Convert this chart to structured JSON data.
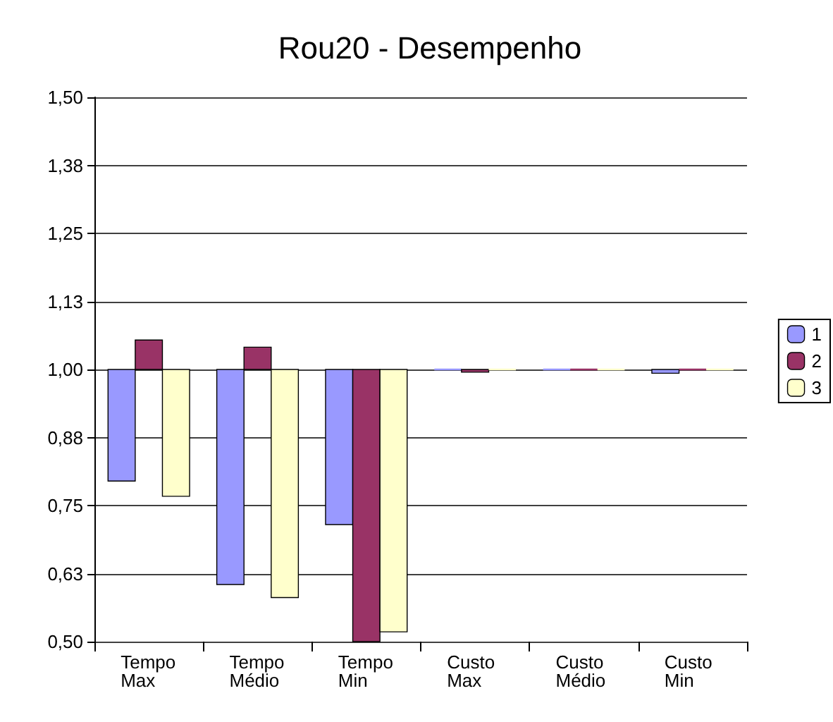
{
  "chart_data": {
    "type": "bar",
    "title": "Rou20 - Desempenho",
    "categories": [
      "Tempo\nMax",
      "Tempo\nMédio",
      "Tempo\nMin",
      "Custo\nMax",
      "Custo\nMédio",
      "Custo\nMin"
    ],
    "series": [
      {
        "name": "1",
        "color": "#9999ff",
        "values": [
          -0.205,
          -0.395,
          -0.285,
          0,
          0,
          -0.007
        ],
        "base": [
          1,
          1,
          1,
          1,
          1,
          1
        ]
      },
      {
        "name": "2",
        "color": "#993366",
        "values": [
          0.054,
          0.041,
          -0.5,
          -0.005,
          0,
          0
        ],
        "base": [
          1,
          1,
          1,
          1,
          1,
          1
        ]
      },
      {
        "name": "3",
        "color": "#ffffcc",
        "values": [
          -0.233,
          -0.419,
          -0.482,
          0,
          0,
          0
        ],
        "base": [
          1,
          1,
          1,
          1,
          1,
          1
        ]
      }
    ],
    "ylim": [
      0.5,
      1.5
    ],
    "yticks": [
      {
        "value": 0.5,
        "label": "0,50"
      },
      {
        "value": 0.625,
        "label": "0,63"
      },
      {
        "value": 0.75,
        "label": "0,75"
      },
      {
        "value": 0.875,
        "label": "0,88"
      },
      {
        "value": 1,
        "label": "1,00"
      },
      {
        "value": 1.125,
        "label": "1,13"
      },
      {
        "value": 1.25,
        "label": "1,25"
      },
      {
        "value": 1.375,
        "label": "1,38"
      },
      {
        "value": 1.5,
        "label": "1,50"
      }
    ],
    "grid": "y",
    "legend": "right"
  }
}
